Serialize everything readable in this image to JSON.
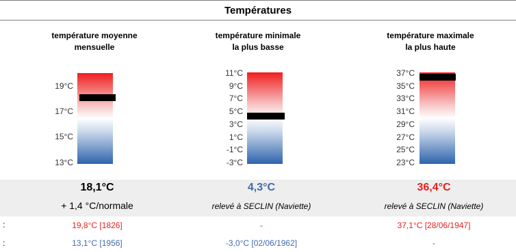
{
  "title": "Températures",
  "colors": {
    "red": "#e8201d",
    "blue": "#3f6aa9",
    "dark_blue": "#2e5a96"
  },
  "columns": [
    {
      "heading_line1": "température moyenne",
      "heading_line2": "mensuelle",
      "ticks": [
        "19°C",
        "17°C",
        "15°C",
        "13°C"
      ],
      "value": "18,1°C",
      "value_color": "#000000",
      "subtitle": "+ 1,4 °C/normale",
      "record_high": "19,8°C  [1826]",
      "record_low": "13,1°C  [1956]"
    },
    {
      "heading_line1": "température minimale",
      "heading_line2": "la plus basse",
      "ticks": [
        "11°C",
        "9°C",
        "7°C",
        "5°C",
        "3°C",
        "1°C",
        "-1°C",
        "-3°C"
      ],
      "value": "4,3°C",
      "value_color": "#3f6aa9",
      "subtitle": "relevé à SECLIN (Naviette)",
      "record_high": "-",
      "record_low": "-3,0°C  [02/06/1962]"
    },
    {
      "heading_line1": "température maximale",
      "heading_line2": "la plus haute",
      "ticks": [
        "37°C",
        "35°C",
        "33°C",
        "31°C",
        "29°C",
        "27°C",
        "25°C",
        "23°C"
      ],
      "value": "36,4°C",
      "value_color": "#e8201d",
      "subtitle": "relevé à SECLIN (Naviette)",
      "record_high": "37,1°C  [28/06/1947]",
      "record_low": "-"
    }
  ],
  "row_colons": [
    ":",
    ":"
  ]
}
